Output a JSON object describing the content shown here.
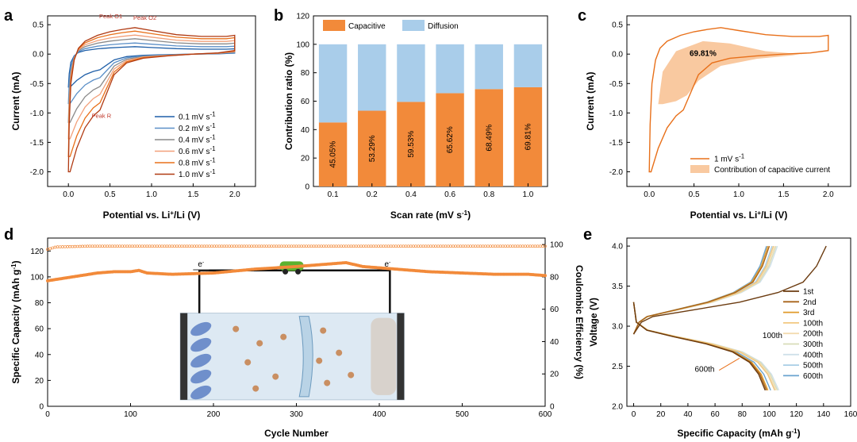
{
  "chart_data": [
    {
      "panel": "a",
      "type": "line",
      "title": "",
      "xlabel": "Potential vs. Li",
      "xlabel_sup": "+",
      "xlabel_tail": "/Li (V)",
      "ylabel": "Current (mA)",
      "xlim": [
        -0.25,
        2.25
      ],
      "ylim": [
        -2.25,
        0.65
      ],
      "xticks": [
        "0.0",
        "0.5",
        "1.0",
        "1.5",
        "2.0"
      ],
      "xtick_values": [
        0,
        0.5,
        1,
        1.5,
        2
      ],
      "yticks": [
        "-2.0",
        "-1.5",
        "-1.0",
        "-0.5",
        "0.0",
        "0.5"
      ],
      "ytick_values": [
        -2,
        -1.5,
        -1,
        -0.5,
        0,
        0.5
      ],
      "annotations": [
        "Peak O1",
        "Peak O2",
        "Peak R"
      ],
      "series": [
        {
          "name": "0.1 mV s-1",
          "label": "0.1 mV s",
          "sup": "-1",
          "color": "#1f5fa8",
          "scale": 0.28
        },
        {
          "name": "0.2 mV s-1",
          "label": "0.2 mV s",
          "sup": "-1",
          "color": "#5b8fc7",
          "scale": 0.42
        },
        {
          "name": "0.4 mV s-1",
          "label": "0.4 mV s",
          "sup": "-1",
          "color": "#8a8a8a",
          "scale": 0.58
        },
        {
          "name": "0.6 mV s-1",
          "label": "0.6 mV s",
          "sup": "-1",
          "color": "#f2a07a",
          "scale": 0.72
        },
        {
          "name": "0.8 mV s-1",
          "label": "0.8 mV s",
          "sup": "-1",
          "color": "#e8701a",
          "scale": 0.87
        },
        {
          "name": "1.0 mV s-1",
          "label": "1.0 mV s",
          "sup": "-1",
          "color": "#b03a12",
          "scale": 1.0
        }
      ]
    },
    {
      "panel": "b",
      "type": "bar",
      "xlabel": "Scan rate (mV s",
      "xlabel_sup": "-1",
      "xlabel_tail": ")",
      "ylabel": "Contribution ratio (%)",
      "ylim": [
        0,
        120
      ],
      "yticks": [
        "0",
        "20",
        "40",
        "60",
        "80",
        "100",
        "120"
      ],
      "ytick_values": [
        0,
        20,
        40,
        60,
        80,
        100,
        120
      ],
      "categories": [
        "0.1",
        "0.2",
        "0.4",
        "0.6",
        "0.8",
        "1.0"
      ],
      "series": [
        {
          "name": "Capacitive",
          "color": "#f28a3a",
          "values": [
            45.05,
            53.29,
            59.53,
            65.62,
            68.49,
            69.81
          ]
        },
        {
          "name": "Diffusion",
          "color": "#a9cdea",
          "values": [
            54.95,
            46.71,
            40.47,
            34.38,
            31.51,
            30.19
          ]
        }
      ],
      "data_labels": [
        "45.05%",
        "53.29%",
        "59.53%",
        "65.62%",
        "68.49%",
        "69.81%"
      ]
    },
    {
      "panel": "c",
      "type": "area",
      "xlabel": "Potential vs. Li",
      "xlabel_sup": "+",
      "xlabel_tail": "/Li (V)",
      "ylabel": "Current (mA)",
      "xlim": [
        -0.25,
        2.25
      ],
      "ylim": [
        -2.25,
        0.65
      ],
      "xticks": [
        "0.0",
        "0.5",
        "1.0",
        "1.5",
        "2.0"
      ],
      "xtick_values": [
        0,
        0.5,
        1,
        1.5,
        2
      ],
      "yticks": [
        "-2.0",
        "-1.5",
        "-1.0",
        "-0.5",
        "0.0",
        "0.5"
      ],
      "ytick_values": [
        -2,
        -1.5,
        -1,
        -0.5,
        0,
        0.5
      ],
      "annotation": "69.81%",
      "legend": [
        {
          "label": "1 mV s",
          "sup": "-1",
          "color": "#e8701a"
        },
        {
          "label": "Contribution of capacitive current",
          "color": "#f9c9a0"
        }
      ]
    },
    {
      "panel": "d",
      "type": "scatter",
      "xlabel": "Cycle Number",
      "ylabel": "Specific Capacity (mAh g",
      "ylabel_sup": "-1",
      "ylabel_tail": ")",
      "y2label": "Coulombic Efficiency (%)",
      "xlim": [
        0,
        600
      ],
      "ylim": [
        0,
        130
      ],
      "y2lim": [
        0,
        104
      ],
      "xticks": [
        "0",
        "100",
        "200",
        "300",
        "400",
        "500",
        "600"
      ],
      "xtick_values": [
        0,
        100,
        200,
        300,
        400,
        500,
        600
      ],
      "yticks": [
        "0",
        "20",
        "40",
        "60",
        "80",
        "100",
        "120"
      ],
      "ytick_values": [
        0,
        20,
        40,
        60,
        80,
        100,
        120
      ],
      "y2ticks": [
        "0",
        "20",
        "40",
        "60",
        "80",
        "100"
      ],
      "y2tick_values": [
        0,
        20,
        40,
        60,
        80,
        100
      ],
      "capacity": [
        [
          0,
          97
        ],
        [
          20,
          99
        ],
        [
          40,
          101
        ],
        [
          60,
          103
        ],
        [
          80,
          104
        ],
        [
          100,
          104
        ],
        [
          110,
          105
        ],
        [
          120,
          103
        ],
        [
          150,
          102
        ],
        [
          200,
          103
        ],
        [
          250,
          106
        ],
        [
          300,
          108
        ],
        [
          340,
          110
        ],
        [
          360,
          111
        ],
        [
          380,
          108
        ],
        [
          420,
          106
        ],
        [
          460,
          104
        ],
        [
          500,
          103
        ],
        [
          540,
          102
        ],
        [
          580,
          102
        ],
        [
          600,
          101
        ]
      ],
      "efficiency": [
        [
          0,
          97
        ],
        [
          10,
          98.5
        ],
        [
          50,
          99
        ],
        [
          600,
          99
        ]
      ],
      "inset_labels": [
        "e",
        "-"
      ],
      "color": "#f28a3a"
    },
    {
      "panel": "e",
      "type": "line",
      "xlabel": "Specific Capacity (mAh g",
      "xlabel_sup": "-1",
      "xlabel_tail": ")",
      "ylabel": "Voltage (V)",
      "xlim": [
        -5,
        160
      ],
      "ylim": [
        2.0,
        4.1
      ],
      "xticks": [
        "0",
        "20",
        "40",
        "60",
        "80",
        "100",
        "120",
        "140",
        "160"
      ],
      "xtick_values": [
        0,
        20,
        40,
        60,
        80,
        100,
        120,
        140,
        160
      ],
      "yticks": [
        "2.0",
        "2.5",
        "3.0",
        "3.5",
        "4.0"
      ],
      "ytick_values": [
        2,
        2.5,
        3,
        3.5,
        4
      ],
      "annotations": [
        "100th",
        "600th"
      ],
      "series": [
        {
          "name": "1st",
          "color": "#6b3b10",
          "charge_cap": 142,
          "discharge_cap": 97
        },
        {
          "name": "2nd",
          "color": "#a8641a",
          "charge_cap": 100,
          "discharge_cap": 98
        },
        {
          "name": "3rd",
          "color": "#e09a2a",
          "charge_cap": 99,
          "discharge_cap": 99
        },
        {
          "name": "100th",
          "color": "#f2c880",
          "charge_cap": 103,
          "discharge_cap": 104
        },
        {
          "name": "200th",
          "color": "#f3dcb0",
          "charge_cap": 104,
          "discharge_cap": 105
        },
        {
          "name": "300th",
          "color": "#d9dcb8",
          "charge_cap": 105,
          "discharge_cap": 106
        },
        {
          "name": "400th",
          "color": "#cfe0ea",
          "charge_cap": 106,
          "discharge_cap": 107
        },
        {
          "name": "500th",
          "color": "#a8cde6",
          "charge_cap": 102,
          "discharge_cap": 104
        },
        {
          "name": "600th",
          "color": "#6aa3cf",
          "charge_cap": 98,
          "discharge_cap": 101
        }
      ]
    }
  ],
  "panels": {
    "a": "a",
    "b": "b",
    "c": "c",
    "d": "d",
    "e": "e"
  }
}
